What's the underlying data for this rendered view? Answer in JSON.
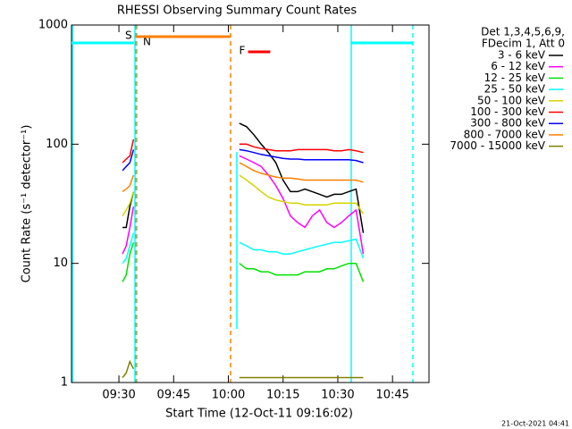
{
  "chart_data": {
    "type": "line",
    "title": "RHESSI Observing Summary Count Rates",
    "xlabel": "Start Time (12-Oct-11 09:16:02)",
    "ylabel": "Count Rate (s⁻¹ detector⁻¹)",
    "legend_header": [
      "Det 1,3,4,5,6,9,",
      "FDecim 1, Att 0"
    ],
    "footer": "21-Oct-2021 04:41",
    "log_y": true,
    "xlim": [
      557,
      655
    ],
    "ylim": [
      1,
      1000
    ],
    "xticks": [
      {
        "value": 570,
        "label": "09:30"
      },
      {
        "value": 585,
        "label": "09:45"
      },
      {
        "value": 600,
        "label": "10:00"
      },
      {
        "value": 615,
        "label": "10:15"
      },
      {
        "value": 630,
        "label": "10:30"
      },
      {
        "value": 645,
        "label": "10:45"
      }
    ],
    "yticks": [
      1,
      10,
      100,
      1000
    ],
    "x": [
      571,
      572,
      573,
      574,
      588,
      603,
      605,
      607,
      609,
      611,
      613,
      615,
      617,
      619,
      621,
      623,
      625,
      627,
      629,
      631,
      633,
      635,
      637
    ],
    "series": [
      {
        "name": "3 - 6 keV",
        "color": "#000000",
        "values": [
          20,
          20,
          30,
          40,
          null,
          150,
          140,
          120,
          100,
          85,
          70,
          50,
          40,
          40,
          42,
          40,
          38,
          36,
          38,
          38,
          40,
          42,
          18
        ]
      },
      {
        "name": "6 - 12 keV",
        "color": "#ff00ff",
        "values": [
          12,
          14,
          20,
          30,
          null,
          80,
          75,
          70,
          65,
          55,
          45,
          35,
          25,
          22,
          20,
          25,
          28,
          22,
          20,
          22,
          25,
          28,
          12
        ]
      },
      {
        "name": "12 - 25 keV",
        "color": "#00e000",
        "values": [
          7,
          8,
          12,
          15,
          null,
          10,
          9,
          9,
          8.5,
          8.5,
          8,
          8,
          8,
          8,
          8.5,
          8.5,
          8.5,
          9,
          9,
          9.5,
          10,
          10,
          7
        ]
      },
      {
        "name": "25 - 50 keV",
        "color": "#00ffff",
        "values": [
          10,
          11,
          14,
          18,
          null,
          15,
          14,
          13,
          13,
          12.5,
          12.5,
          12,
          12,
          12.5,
          13,
          13.5,
          14,
          14.5,
          15,
          15,
          15.5,
          16,
          11
        ]
      },
      {
        "name": "50 - 100 keV",
        "color": "#d4d400",
        "values": [
          25,
          28,
          32,
          40,
          null,
          55,
          50,
          45,
          40,
          36,
          34,
          33,
          32,
          32,
          31,
          31,
          31,
          31,
          32,
          32,
          32,
          32,
          26
        ]
      },
      {
        "name": "100 - 300 keV",
        "color": "#ff0000",
        "values": [
          70,
          75,
          80,
          110,
          null,
          100,
          100,
          95,
          92,
          90,
          88,
          88,
          88,
          90,
          90,
          90,
          90,
          90,
          88,
          88,
          90,
          88,
          85
        ]
      },
      {
        "name": "300 - 800 keV",
        "color": "#0000ff",
        "values": [
          60,
          65,
          70,
          90,
          null,
          90,
          88,
          85,
          82,
          80,
          78,
          76,
          75,
          75,
          74,
          74,
          74,
          74,
          74,
          74,
          74,
          73,
          70
        ]
      },
      {
        "name": "800 - 7000 keV",
        "color": "#ff8000",
        "values": [
          40,
          42,
          45,
          55,
          null,
          70,
          65,
          60,
          57,
          55,
          53,
          52,
          52,
          51,
          50,
          50,
          50,
          50,
          50,
          50,
          50,
          50,
          48
        ]
      },
      {
        "name": "7000 - 15000 keV",
        "color": "#808000",
        "values": [
          1.1,
          1.2,
          1.5,
          1.3,
          null,
          1.1,
          1.1,
          1.1,
          1.1,
          1.1,
          1.1,
          1.1,
          1.1,
          1.1,
          1.1,
          1.1,
          1.1,
          1.1,
          1.1,
          1.1,
          1.1,
          1.1,
          1.1
        ]
      }
    ],
    "flags": [
      {
        "label": "N",
        "color": "#00ffff",
        "start": 557,
        "end": 574.1
      },
      {
        "label": "S",
        "color": "#ff8000",
        "start": 574.5,
        "end": 600.5
      },
      {
        "label": "F",
        "color": "#ff0000",
        "start": 605.4,
        "end": 611.5
      },
      {
        "label": "N",
        "color": "#00ffff",
        "start": 633.5,
        "end": 650.5
      }
    ]
  }
}
